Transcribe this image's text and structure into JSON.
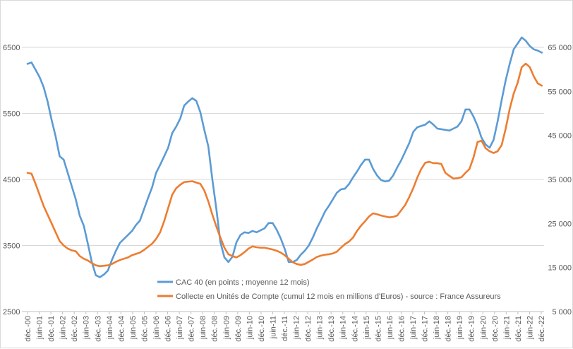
{
  "chart_data": {
    "type": "line",
    "title": "",
    "xlabel": "",
    "ylabel_left": "",
    "ylabel_right": "",
    "grid": true,
    "legend_position": "lower-center inside plot",
    "x_ticks": [
      "déc.-00",
      "juin-01",
      "déc.-01",
      "juin-02",
      "déc.-02",
      "juin-03",
      "déc.-03",
      "juin-04",
      "déc.-04",
      "juin-05",
      "déc.-05",
      "juin-06",
      "déc.-06",
      "juin-07",
      "déc.-07",
      "juin-08",
      "déc.-08",
      "juin-09",
      "déc.-09",
      "juin-10",
      "déc.-10",
      "juin-11",
      "déc.-11",
      "juin-12",
      "déc.-12",
      "juin-13",
      "déc.-13",
      "juin-14",
      "déc.-14",
      "juin-15",
      "déc.-15",
      "juin-16",
      "déc.-16",
      "juin-17",
      "déc.-17",
      "juin-18",
      "déc.-18",
      "juin-19",
      "déc.-19",
      "juin-20",
      "déc.-20",
      "juin-21",
      "déc.-21",
      "juin-22",
      "déc.-22"
    ],
    "y_left": {
      "min": 2500,
      "max": 6500,
      "ticks": [
        2500,
        3500,
        4500,
        5500,
        6500
      ]
    },
    "y_right": {
      "min": 5000,
      "max": 65000,
      "ticks": [
        5000,
        15000,
        25000,
        35000,
        45000,
        55000,
        65000
      ],
      "tick_labels": [
        "5 000",
        "15 000",
        "25 000",
        "35 000",
        "45 000",
        "55 000",
        "65 000"
      ]
    },
    "series": [
      {
        "name": "CAC 40 (en points ; moyenne 12 mois)",
        "color": "#5b9bd5",
        "axis": "left",
        "values": [
          6250,
          6270,
          6160,
          6050,
          5900,
          5680,
          5400,
          5150,
          4850,
          4800,
          4600,
          4400,
          4200,
          3950,
          3800,
          3530,
          3250,
          3050,
          3020,
          3060,
          3120,
          3280,
          3420,
          3540,
          3600,
          3660,
          3720,
          3810,
          3880,
          4050,
          4220,
          4380,
          4600,
          4720,
          4850,
          4980,
          5200,
          5300,
          5420,
          5620,
          5680,
          5730,
          5690,
          5520,
          5250,
          5000,
          4500,
          4050,
          3550,
          3320,
          3250,
          3330,
          3550,
          3660,
          3700,
          3690,
          3720,
          3700,
          3730,
          3760,
          3840,
          3840,
          3740,
          3610,
          3450,
          3250,
          3250,
          3280,
          3360,
          3420,
          3500,
          3620,
          3760,
          3880,
          4010,
          4100,
          4200,
          4300,
          4350,
          4360,
          4430,
          4530,
          4620,
          4720,
          4800,
          4800,
          4660,
          4560,
          4490,
          4470,
          4480,
          4560,
          4680,
          4790,
          4920,
          5050,
          5220,
          5290,
          5310,
          5330,
          5380,
          5330,
          5270,
          5260,
          5250,
          5240,
          5270,
          5300,
          5380,
          5560,
          5560,
          5450,
          5310,
          5130,
          5030,
          4980,
          5100,
          5380,
          5700,
          6000,
          6250,
          6470,
          6560,
          6650,
          6600,
          6520,
          6470,
          6450,
          6420
        ],
        "last_x_tick_offset": 1.05
      },
      {
        "name": "Collecte en Unités de Compte (cumul 12 mois en millions d'Euros) - source : France Assureurs",
        "color": "#ed7d31",
        "axis": "right",
        "values": [
          36500,
          36300,
          34000,
          31500,
          29000,
          27000,
          25000,
          23000,
          21000,
          20000,
          19300,
          18900,
          18700,
          17600,
          17000,
          16600,
          16000,
          15500,
          15300,
          15400,
          15500,
          15800,
          16300,
          16700,
          17000,
          17300,
          17800,
          18100,
          18400,
          19000,
          19700,
          20400,
          21500,
          23000,
          25500,
          28500,
          31500,
          33000,
          33800,
          34400,
          34500,
          34600,
          34300,
          34000,
          32500,
          30000,
          27000,
          24300,
          21800,
          19500,
          18000,
          17600,
          17300,
          17800,
          18500,
          19300,
          19800,
          19600,
          19500,
          19500,
          19300,
          19100,
          18800,
          18400,
          17800,
          17000,
          16200,
          15800,
          15600,
          15800,
          16300,
          16800,
          17400,
          17700,
          17900,
          18000,
          18200,
          18600,
          19500,
          20300,
          20900,
          21800,
          23300,
          24500,
          25500,
          26600,
          27300,
          27100,
          26800,
          26600,
          26400,
          26500,
          26800,
          28000,
          29200,
          31000,
          33000,
          35400,
          37400,
          38800,
          39000,
          38700,
          38700,
          38500,
          36500,
          35800,
          35200,
          35300,
          35500,
          36500,
          37400,
          40000,
          43500,
          43800,
          42100,
          41400,
          41000,
          41400,
          42800,
          46500,
          51000,
          54500,
          57000,
          60500,
          61300,
          60500,
          58400,
          56800,
          56300
        ],
        "last_x_tick_offset": 1.05
      }
    ]
  }
}
